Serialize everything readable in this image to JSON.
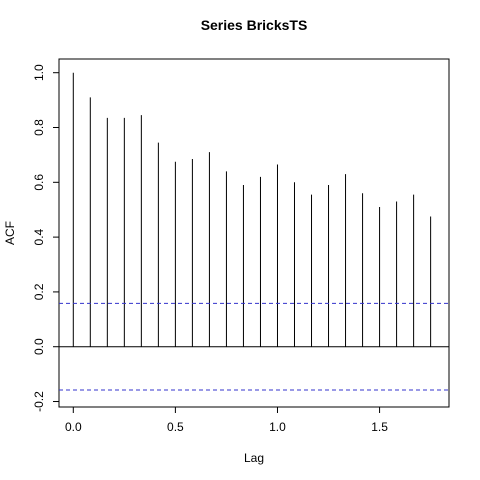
{
  "chart_data": {
    "type": "bar",
    "title": "Series  BricksTS",
    "xlabel": "Lag",
    "ylabel": "ACF",
    "xlim": [
      -0.07,
      1.84
    ],
    "ylim": [
      -0.2,
      1.0
    ],
    "x_ticks": [
      0.0,
      0.5,
      1.0,
      1.5
    ],
    "x_tick_labels": [
      "0.0",
      "0.5",
      "1.0",
      "1.5"
    ],
    "y_ticks": [
      -0.2,
      0.0,
      0.2,
      0.4,
      0.6,
      0.8,
      1.0
    ],
    "y_tick_labels": [
      "-0.2",
      "0.0",
      "0.2",
      "0.4",
      "0.6",
      "0.8",
      "1.0"
    ],
    "lags": [
      0.0,
      0.0833,
      0.1667,
      0.25,
      0.3333,
      0.4167,
      0.5,
      0.5833,
      0.6667,
      0.75,
      0.8333,
      0.9167,
      1.0,
      1.0833,
      1.1667,
      1.25,
      1.3333,
      1.4167,
      1.5,
      1.5833,
      1.6667,
      1.75
    ],
    "acf": [
      1.0,
      0.91,
      0.835,
      0.835,
      0.845,
      0.745,
      0.675,
      0.685,
      0.71,
      0.64,
      0.59,
      0.62,
      0.665,
      0.6,
      0.555,
      0.59,
      0.63,
      0.56,
      0.51,
      0.53,
      0.555,
      0.475
    ],
    "confidence_bound": 0.158,
    "zero_line": true,
    "colors": {
      "bars": "#000000",
      "confidence": "#3333cc",
      "frame": "#000000"
    }
  }
}
